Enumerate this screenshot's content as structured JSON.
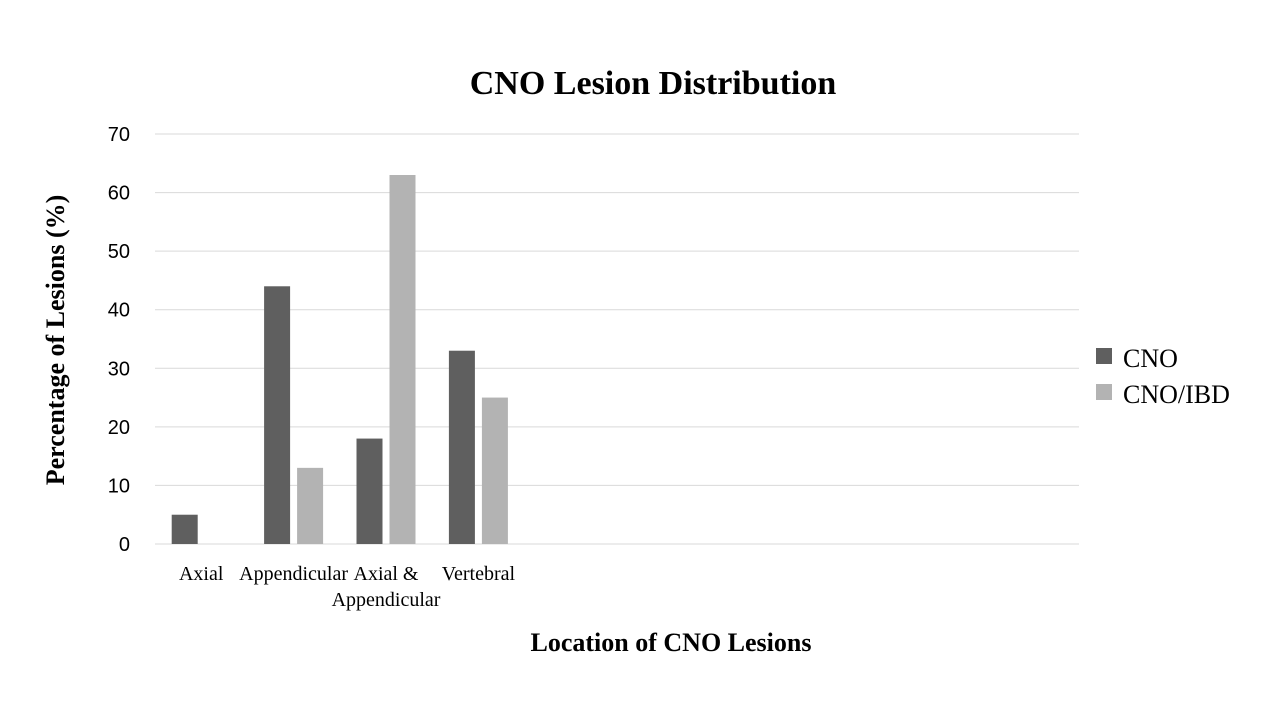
{
  "chart_data": {
    "type": "bar",
    "title": "CNO Lesion Distribution",
    "xlabel": "Location of CNO Lesions",
    "ylabel": "Percentage of Lesions (%)",
    "categories": [
      [
        "Axial"
      ],
      [
        "Appendicular"
      ],
      [
        "Axial &",
        "Appendicular"
      ],
      [
        "Vertebral"
      ],
      [
        ""
      ],
      [
        ""
      ],
      [
        ""
      ],
      [
        ""
      ],
      [
        ""
      ],
      [
        ""
      ]
    ],
    "series": [
      {
        "name": "CNO",
        "color": "#5f5f5f",
        "values": [
          5,
          44,
          18,
          33,
          null,
          null,
          null,
          null,
          null,
          null
        ]
      },
      {
        "name": "CNO/IBD",
        "color": "#b3b3b3",
        "values": [
          0,
          13,
          63,
          25,
          null,
          null,
          null,
          null,
          null,
          null
        ]
      }
    ],
    "ylim": [
      0,
      70
    ],
    "yticks": [
      0,
      10,
      20,
      30,
      40,
      50,
      60,
      70
    ],
    "grid": true,
    "legend_position": "right"
  }
}
